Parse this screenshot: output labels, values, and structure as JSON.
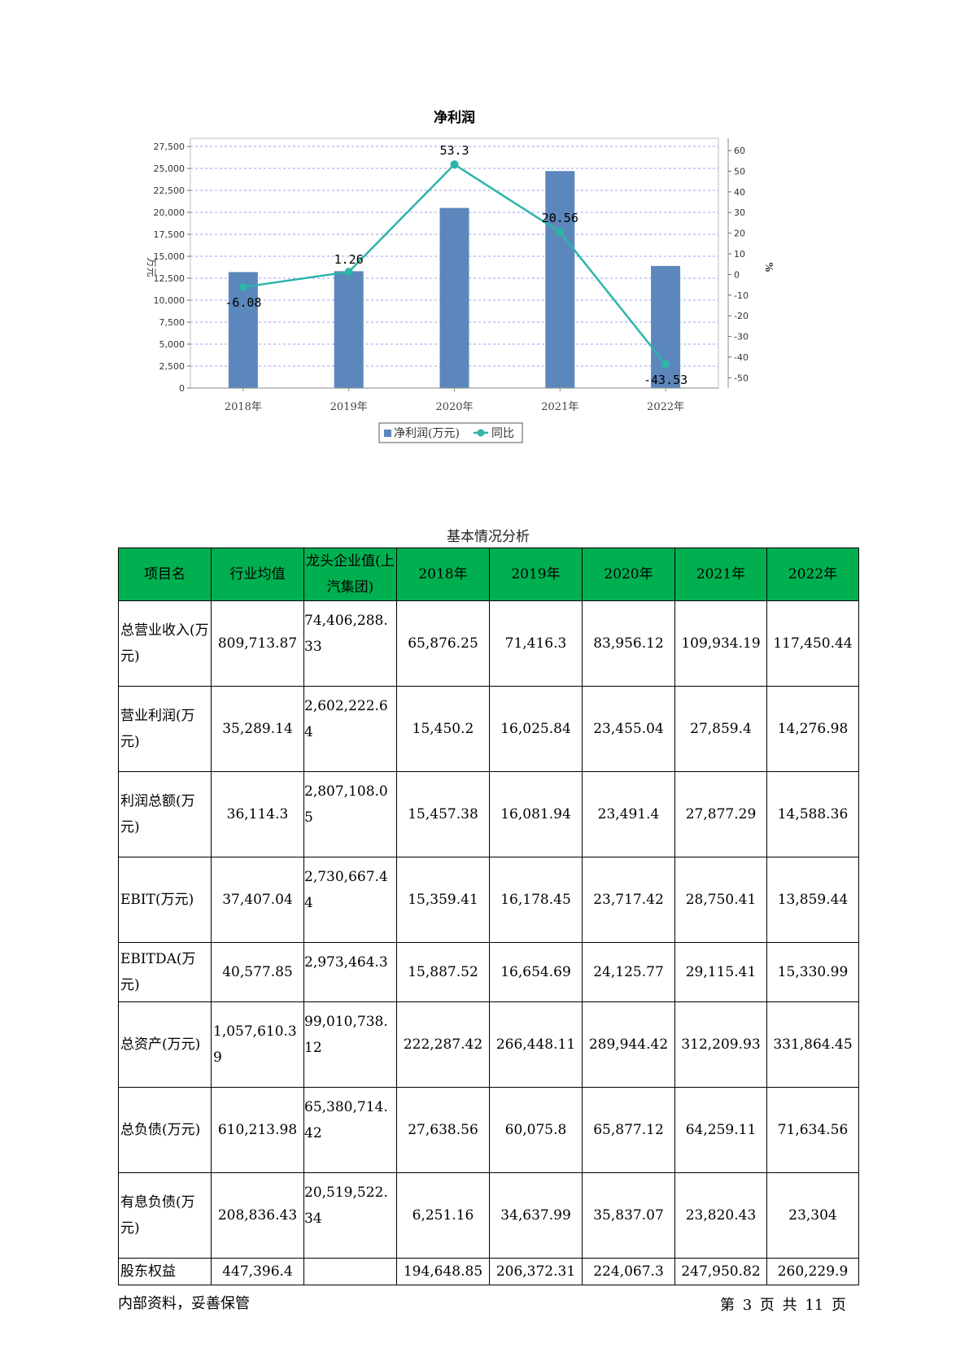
{
  "chart_data": {
    "type": "bar",
    "title": "净利润",
    "categories": [
      "2018年",
      "2019年",
      "2020年",
      "2021年",
      "2022年"
    ],
    "series": [
      {
        "name": "净利润(万元)",
        "type": "bar",
        "axis": "left",
        "color": "#5b87bc",
        "values": [
          13200,
          13300,
          20500,
          24700,
          13900
        ]
      },
      {
        "name": "同比",
        "type": "line",
        "axis": "right",
        "color": "#2cb5a8",
        "values": [
          -6.08,
          1.26,
          53.3,
          20.56,
          -43.53
        ],
        "labels": [
          "-6.08",
          "1.26",
          "53.3",
          "20.56",
          "-43.53"
        ]
      }
    ],
    "ylabel_left": "万元",
    "ylabel_right": "%",
    "ylim_left": [
      0,
      27500
    ],
    "yticks_left": [
      "0",
      "2,500",
      "5,000",
      "7,500",
      "10,000",
      "12,500",
      "15,000",
      "17,500",
      "20,000",
      "22,500",
      "25,000",
      "27,500"
    ],
    "ylim_right": [
      -55,
      62
    ],
    "yticks_right": [
      "-50",
      "-40",
      "-30",
      "-20",
      "-10",
      "0",
      "10",
      "20",
      "30",
      "40",
      "50",
      "60"
    ],
    "grid": true,
    "legend_position": "bottom"
  },
  "table": {
    "caption": "基本情况分析",
    "headers": [
      "项目名",
      "行业均值",
      "龙头企业值(上汽集团)",
      "2018年",
      "2019年",
      "2020年",
      "2021年",
      "2022年"
    ],
    "rows": [
      {
        "label": "总营业收入(万元)",
        "values": [
          "809,713.87",
          "74,406,288.33",
          "65,876.25",
          "71,416.3",
          "83,956.12",
          "109,934.19",
          "117,450.44"
        ]
      },
      {
        "label": "营业利润(万元)",
        "values": [
          "35,289.14",
          "2,602,222.64",
          "15,450.2",
          "16,025.84",
          "23,455.04",
          "27,859.4",
          "14,276.98"
        ]
      },
      {
        "label": "利润总额(万元)",
        "values": [
          "36,114.3",
          "2,807,108.05",
          "15,457.38",
          "16,081.94",
          "23,491.4",
          "27,877.29",
          "14,588.36"
        ]
      },
      {
        "label": "EBIT(万元)",
        "values": [
          "37,407.04",
          "2,730,667.44",
          "15,359.41",
          "16,178.45",
          "23,717.42",
          "28,750.41",
          "13,859.44"
        ]
      },
      {
        "label": "EBITDA(万元)",
        "values": [
          "40,577.85",
          "2,973,464.3",
          "15,887.52",
          "16,654.69",
          "24,125.77",
          "29,115.41",
          "15,330.99"
        ]
      },
      {
        "label": "总资产(万元)",
        "values": [
          "1,057,610.39",
          "99,010,738.12",
          "222,287.42",
          "266,448.11",
          "289,944.42",
          "312,209.93",
          "331,864.45"
        ]
      },
      {
        "label": "总负债(万元)",
        "values": [
          "610,213.98",
          "65,380,714.42",
          "27,638.56",
          "60,075.8",
          "65,877.12",
          "64,259.11",
          "71,634.56"
        ]
      },
      {
        "label": "有息负债(万元)",
        "values": [
          "208,836.43",
          "20,519,522.34",
          "6,251.16",
          "34,637.99",
          "35,837.07",
          "23,820.43",
          "23,304"
        ]
      },
      {
        "label": "股东权益",
        "values": [
          "447,396.4",
          "",
          "194,648.85",
          "206,372.31",
          "224,067.3",
          "247,950.82",
          "260,229.9"
        ]
      }
    ]
  },
  "footer": {
    "left": "内部资料，妥善保管",
    "right": "第 3 页 共 11 页"
  }
}
